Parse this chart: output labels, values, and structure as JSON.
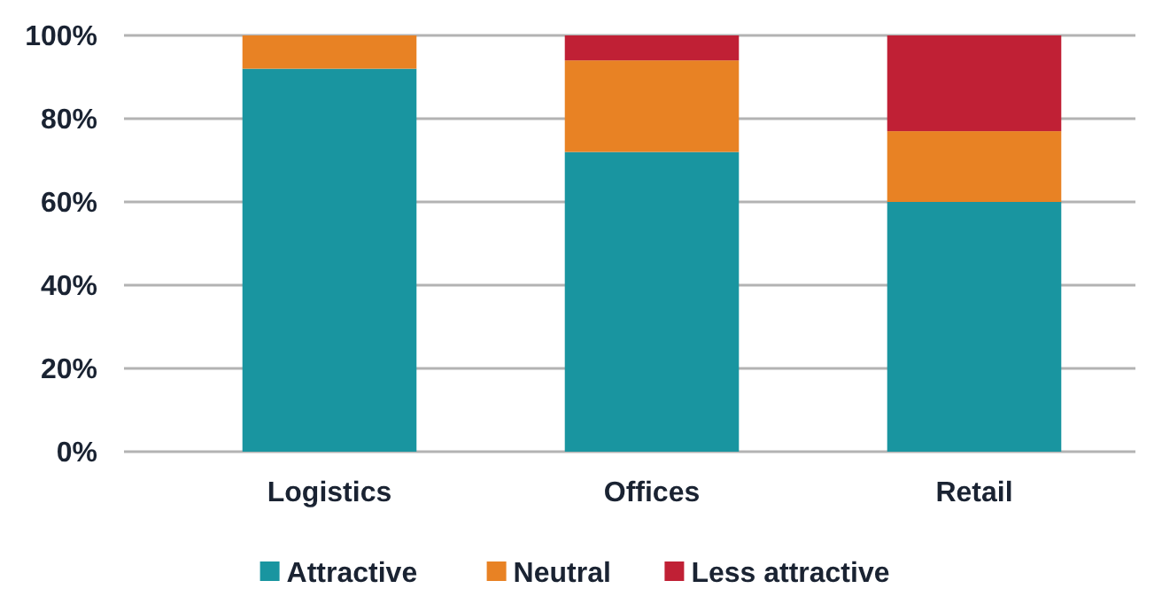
{
  "chart_data": {
    "type": "bar",
    "stacked": true,
    "categories": [
      "Logistics",
      "Offices",
      "Retail"
    ],
    "series": [
      {
        "name": "Attractive",
        "color": "#1995a0",
        "values": [
          92,
          72,
          60
        ]
      },
      {
        "name": "Neutral",
        "color": "#e88224",
        "values": [
          8,
          22,
          17
        ]
      },
      {
        "name": "Less attractive",
        "color": "#c02035",
        "values": [
          0,
          6,
          23
        ]
      }
    ],
    "ylim": [
      0,
      100
    ],
    "yticks": [
      {
        "value": 0,
        "label": "0%"
      },
      {
        "value": 20,
        "label": "20%"
      },
      {
        "value": 40,
        "label": "40%"
      },
      {
        "value": 60,
        "label": "60%"
      },
      {
        "value": 80,
        "label": "80%"
      },
      {
        "value": 100,
        "label": "100%"
      }
    ],
    "grid": "y",
    "legend": "bottom"
  }
}
